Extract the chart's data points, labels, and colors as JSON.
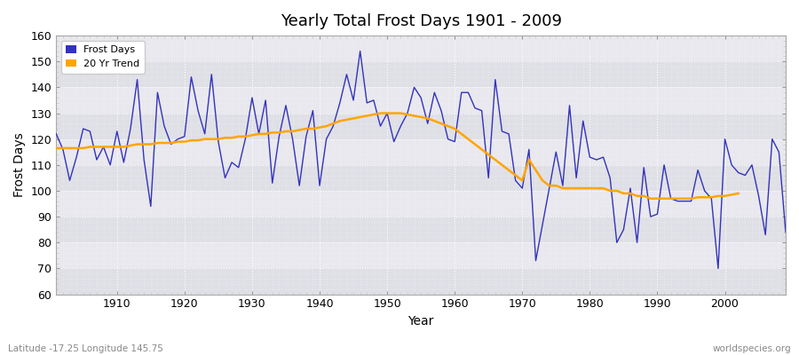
{
  "title": "Yearly Total Frost Days 1901 - 2009",
  "xlabel": "Year",
  "ylabel": "Frost Days",
  "subtitle": "Latitude -17.25 Longitude 145.75",
  "watermark": "worldspecies.org",
  "legend_labels": [
    "Frost Days",
    "20 Yr Trend"
  ],
  "line_color": "#3333bb",
  "trend_color": "#FFA500",
  "plot_bg_color": "#e8e8ee",
  "fig_bg_color": "#f0f0f0",
  "ylim": [
    60,
    160
  ],
  "xlim": [
    1901,
    2009
  ],
  "xticks": [
    1910,
    1920,
    1930,
    1940,
    1950,
    1960,
    1970,
    1980,
    1990,
    2000
  ],
  "yticks": [
    60,
    70,
    80,
    90,
    100,
    110,
    120,
    130,
    140,
    150,
    160
  ],
  "years": [
    1901,
    1902,
    1903,
    1904,
    1905,
    1906,
    1907,
    1908,
    1909,
    1910,
    1911,
    1912,
    1913,
    1914,
    1915,
    1916,
    1917,
    1918,
    1919,
    1920,
    1921,
    1922,
    1923,
    1924,
    1925,
    1926,
    1927,
    1928,
    1929,
    1930,
    1931,
    1932,
    1933,
    1934,
    1935,
    1936,
    1937,
    1938,
    1939,
    1940,
    1941,
    1942,
    1943,
    1944,
    1945,
    1946,
    1947,
    1948,
    1949,
    1950,
    1951,
    1952,
    1953,
    1954,
    1955,
    1956,
    1957,
    1958,
    1959,
    1960,
    1961,
    1962,
    1963,
    1964,
    1965,
    1966,
    1967,
    1968,
    1969,
    1970,
    1971,
    1972,
    1973,
    1974,
    1975,
    1976,
    1977,
    1978,
    1979,
    1980,
    1981,
    1982,
    1983,
    1984,
    1985,
    1986,
    1987,
    1988,
    1989,
    1990,
    1991,
    1992,
    1993,
    1994,
    1995,
    1996,
    1997,
    1998,
    1999,
    2000,
    2001,
    2002,
    2003,
    2004,
    2005,
    2006,
    2007,
    2008,
    2009
  ],
  "frost_days": [
    122,
    116,
    104,
    113,
    124,
    123,
    112,
    117,
    110,
    123,
    111,
    124,
    143,
    112,
    94,
    138,
    125,
    118,
    120,
    121,
    144,
    131,
    122,
    145,
    119,
    105,
    111,
    109,
    120,
    136,
    122,
    135,
    103,
    121,
    133,
    120,
    102,
    121,
    131,
    102,
    120,
    125,
    134,
    145,
    135,
    154,
    134,
    135,
    125,
    130,
    119,
    125,
    130,
    140,
    136,
    126,
    138,
    131,
    120,
    119,
    138,
    138,
    132,
    131,
    105,
    143,
    123,
    122,
    104,
    101,
    116,
    73,
    87,
    101,
    115,
    102,
    133,
    105,
    127,
    113,
    112,
    113,
    105,
    80,
    85,
    101,
    80,
    109,
    90,
    91,
    110,
    97,
    96,
    96,
    96,
    108,
    100,
    97,
    70,
    120,
    110,
    107,
    106,
    110,
    98,
    83,
    120,
    115,
    84
  ],
  "trend_years": [
    1901,
    1902,
    1903,
    1904,
    1905,
    1906,
    1907,
    1908,
    1909,
    1910,
    1911,
    1912,
    1913,
    1914,
    1915,
    1916,
    1917,
    1918,
    1919,
    1920,
    1921,
    1922,
    1923,
    1924,
    1925,
    1926,
    1927,
    1928,
    1929,
    1930,
    1931,
    1932,
    1933,
    1934,
    1935,
    1936,
    1937,
    1938,
    1939,
    1940,
    1941,
    1942,
    1943,
    1944,
    1945,
    1946,
    1947,
    1948,
    1949,
    1950,
    1951,
    1952,
    1953,
    1954,
    1955,
    1956,
    1957,
    1958,
    1959,
    1960,
    1961,
    1962,
    1963,
    1964,
    1965,
    1966,
    1967,
    1968,
    1969,
    1970,
    1971,
    1972,
    1973,
    1974,
    1975,
    1976,
    1977,
    1978,
    1979,
    1980,
    1981,
    1982,
    1983,
    1984,
    1985,
    1986,
    1987,
    1988,
    1989,
    1990,
    1991,
    1992,
    1993,
    1994,
    1995,
    1996,
    1997,
    1998,
    1999,
    2000,
    2001,
    2002
  ],
  "trend_values": [
    116.5,
    116.5,
    116.5,
    116.5,
    116.5,
    117,
    117,
    117,
    117,
    117,
    117,
    117.5,
    118,
    118,
    118,
    118.5,
    118.5,
    118.5,
    119,
    119,
    119.5,
    119.5,
    120,
    120,
    120,
    120.5,
    120.5,
    121,
    121,
    121.5,
    122,
    122,
    122.5,
    122.5,
    123,
    123,
    123.5,
    124,
    124,
    124.5,
    125,
    126,
    127,
    127.5,
    128,
    128.5,
    129,
    129.5,
    130,
    130,
    130,
    130,
    129.5,
    129,
    128.5,
    128,
    127,
    126,
    125,
    124,
    122,
    120,
    118,
    116,
    114,
    112,
    110,
    108,
    106,
    104,
    112,
    108,
    104,
    102,
    102,
    101,
    101,
    101,
    101,
    101,
    101,
    101,
    100,
    100,
    99,
    99,
    98,
    98,
    97,
    97,
    97,
    97,
    97,
    97,
    97,
    97.5,
    97.5,
    97.5,
    98,
    98,
    98.5,
    99
  ]
}
